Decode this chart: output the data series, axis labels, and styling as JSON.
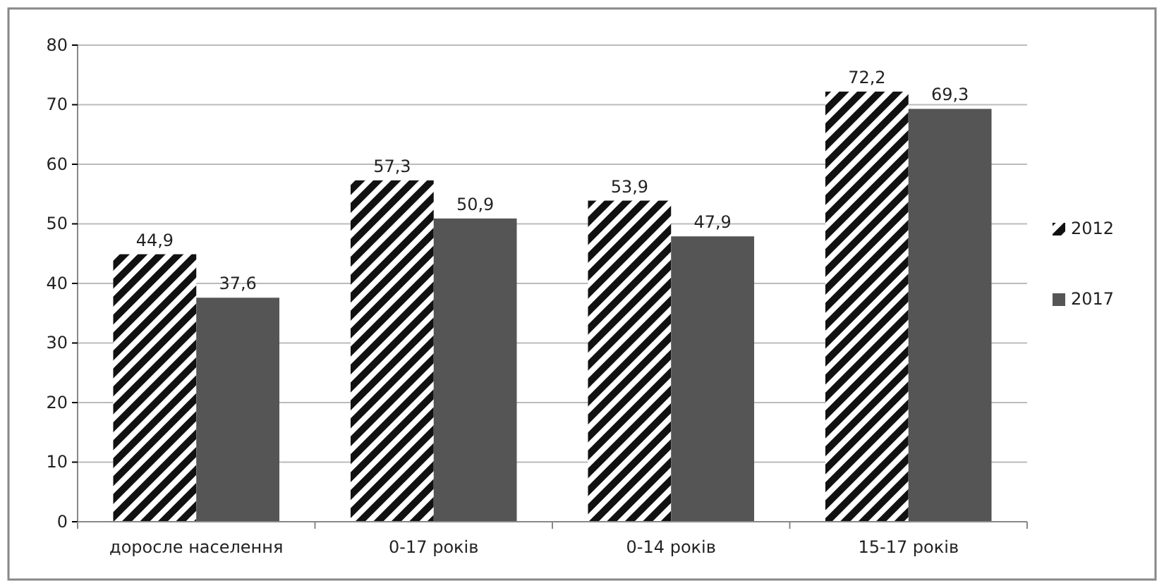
{
  "chart_data": {
    "type": "bar",
    "categories": [
      "доросле населення",
      "0-17 років",
      "0-14 років",
      "15-17 років"
    ],
    "series": [
      {
        "name": "2012",
        "color": "#111111",
        "values": [
          44.9,
          57.3,
          53.9,
          72.2
        ],
        "value_labels": [
          "44,9",
          "57,3",
          "53,9",
          "72,2"
        ]
      },
      {
        "name": "2017",
        "color": "#555555",
        "values": [
          37.6,
          50.9,
          47.9,
          69.3
        ],
        "value_labels": [
          "37,6",
          "50,9",
          "47,9",
          "69,3"
        ]
      }
    ],
    "ylim": [
      0,
      80
    ],
    "yticks": [
      0,
      10,
      20,
      30,
      40,
      50,
      60,
      70,
      80
    ],
    "grid": "y",
    "legend": "right"
  }
}
